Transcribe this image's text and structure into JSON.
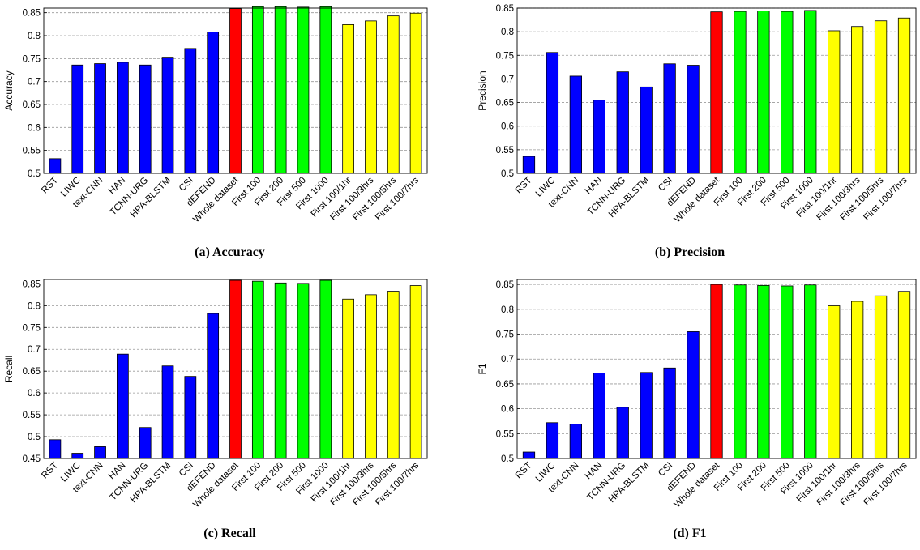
{
  "colors": {
    "baseline": "#0000ff",
    "whole": "#ff0000",
    "first": "#00ff00",
    "early": "#ffff00",
    "grid": "#999999"
  },
  "categories": [
    "RST",
    "LIWC",
    "text-CNN",
    "HAN",
    "TCNN-URG",
    "HPA-BLSTM",
    "CSI",
    "dEFEND",
    "Whole dataset",
    "First 100",
    "First 200",
    "First 500",
    "First 1000",
    "First 100/1hr",
    "First 100/3hrs",
    "First 100/5hrs",
    "First 100/7hrs"
  ],
  "category_colors": [
    "baseline",
    "baseline",
    "baseline",
    "baseline",
    "baseline",
    "baseline",
    "baseline",
    "baseline",
    "whole",
    "first",
    "first",
    "first",
    "first",
    "early",
    "early",
    "early",
    "early"
  ],
  "chart_data": [
    {
      "type": "bar",
      "caption": "(a) Accuracy",
      "ylabel": "Accuracy",
      "ylim": [
        0.5,
        0.86
      ],
      "yticks": [
        0.5,
        0.55,
        0.6,
        0.65,
        0.7,
        0.75,
        0.8,
        0.85
      ],
      "ytick_labels": [
        "0.5",
        "0.55",
        "0.6",
        "0.65",
        "0.7",
        "0.75",
        "0.8",
        "0.85"
      ],
      "grid": true,
      "values": [
        0.532,
        0.736,
        0.739,
        0.742,
        0.736,
        0.753,
        0.772,
        0.808,
        0.859,
        0.863,
        0.863,
        0.862,
        0.863,
        0.824,
        0.832,
        0.843,
        0.849
      ]
    },
    {
      "type": "bar",
      "caption": "(b) Precision",
      "ylabel": "Precision",
      "ylim": [
        0.5,
        0.85
      ],
      "yticks": [
        0.5,
        0.55,
        0.6,
        0.65,
        0.7,
        0.75,
        0.8,
        0.85
      ],
      "ytick_labels": [
        "0.5",
        "0.55",
        "0.6",
        "0.65",
        "0.7",
        "0.75",
        "0.8",
        "0.85"
      ],
      "grid": true,
      "values": [
        0.536,
        0.756,
        0.706,
        0.655,
        0.715,
        0.683,
        0.732,
        0.729,
        0.842,
        0.843,
        0.844,
        0.843,
        0.845,
        0.802,
        0.811,
        0.823,
        0.829
      ]
    },
    {
      "type": "bar",
      "caption": "(c) Recall",
      "ylabel": "Recall",
      "ylim": [
        0.45,
        0.86
      ],
      "yticks": [
        0.45,
        0.5,
        0.55,
        0.6,
        0.65,
        0.7,
        0.75,
        0.8,
        0.85
      ],
      "ytick_labels": [
        "0.45",
        "0.5",
        "0.55",
        "0.6",
        "0.65",
        "0.7",
        "0.75",
        "0.8",
        "0.85"
      ],
      "grid": true,
      "values": [
        0.493,
        0.462,
        0.477,
        0.689,
        0.521,
        0.662,
        0.638,
        0.782,
        0.858,
        0.856,
        0.852,
        0.851,
        0.858,
        0.815,
        0.825,
        0.833,
        0.846
      ]
    },
    {
      "type": "bar",
      "caption": "(d) F1",
      "ylabel": "F1",
      "ylim": [
        0.5,
        0.86
      ],
      "yticks": [
        0.5,
        0.55,
        0.6,
        0.65,
        0.7,
        0.75,
        0.8,
        0.85
      ],
      "ytick_labels": [
        "0.5",
        "0.55",
        "0.6",
        "0.65",
        "0.7",
        "0.75",
        "0.8",
        "0.85"
      ],
      "grid": true,
      "values": [
        0.513,
        0.572,
        0.569,
        0.672,
        0.603,
        0.673,
        0.682,
        0.755,
        0.85,
        0.849,
        0.848,
        0.847,
        0.849,
        0.807,
        0.816,
        0.827,
        0.836
      ]
    }
  ]
}
